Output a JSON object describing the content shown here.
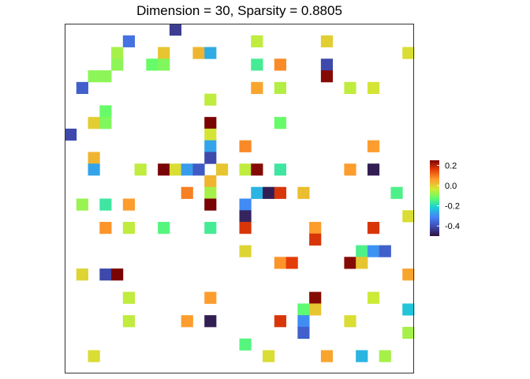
{
  "chart_data": {
    "type": "heatmap",
    "title": "Dimension = 30, Sparsity = 0.8805",
    "grid": false,
    "legend_placement": "right",
    "n_rows": 30,
    "n_cols": 30,
    "colorscale": {
      "name": "turbo",
      "vmin": -0.5,
      "vmax": 0.25
    },
    "colorbar": {
      "ticks": [
        0.2,
        0.0,
        -0.2,
        -0.4
      ],
      "tick_labels": [
        "0.2",
        "0.0",
        "-0.2",
        "-0.4"
      ]
    },
    "cells": [
      {
        "row": 0,
        "col": 9,
        "value": -0.43
      },
      {
        "row": 1,
        "col": 5,
        "value": -0.34
      },
      {
        "row": 1,
        "col": 16,
        "value": -0.05
      },
      {
        "row": 1,
        "col": 22,
        "value": 0.0
      },
      {
        "row": 2,
        "col": 4,
        "value": -0.07
      },
      {
        "row": 2,
        "col": 8,
        "value": 0.01
      },
      {
        "row": 2,
        "col": 11,
        "value": 0.03
      },
      {
        "row": 2,
        "col": 12,
        "value": -0.26
      },
      {
        "row": 2,
        "col": 29,
        "value": -0.02
      },
      {
        "row": 3,
        "col": 4,
        "value": -0.09
      },
      {
        "row": 3,
        "col": 7,
        "value": -0.12
      },
      {
        "row": 3,
        "col": 8,
        "value": -0.1
      },
      {
        "row": 3,
        "col": 16,
        "value": -0.16
      },
      {
        "row": 3,
        "col": 18,
        "value": 0.08
      },
      {
        "row": 3,
        "col": 22,
        "value": -0.41
      },
      {
        "row": 4,
        "col": 2,
        "value": -0.09
      },
      {
        "row": 4,
        "col": 3,
        "value": -0.09
      },
      {
        "row": 4,
        "col": 22,
        "value": 0.24
      },
      {
        "row": 5,
        "col": 1,
        "value": -0.37
      },
      {
        "row": 5,
        "col": 16,
        "value": 0.05
      },
      {
        "row": 5,
        "col": 18,
        "value": -0.06
      },
      {
        "row": 5,
        "col": 24,
        "value": -0.05
      },
      {
        "row": 5,
        "col": 26,
        "value": -0.03
      },
      {
        "row": 6,
        "col": 12,
        "value": -0.05
      },
      {
        "row": 7,
        "col": 3,
        "value": -0.12
      },
      {
        "row": 8,
        "col": 2,
        "value": 0.0
      },
      {
        "row": 8,
        "col": 3,
        "value": -0.1
      },
      {
        "row": 8,
        "col": 12,
        "value": 0.27
      },
      {
        "row": 8,
        "col": 18,
        "value": -0.12
      },
      {
        "row": 9,
        "col": 0,
        "value": -0.41
      },
      {
        "row": 9,
        "col": 12,
        "value": -0.03
      },
      {
        "row": 10,
        "col": 12,
        "value": -0.27
      },
      {
        "row": 10,
        "col": 15,
        "value": 0.08
      },
      {
        "row": 10,
        "col": 26,
        "value": 0.06
      },
      {
        "row": 11,
        "col": 2,
        "value": 0.03
      },
      {
        "row": 11,
        "col": 12,
        "value": -0.41
      },
      {
        "row": 12,
        "col": 2,
        "value": -0.27
      },
      {
        "row": 12,
        "col": 6,
        "value": -0.05
      },
      {
        "row": 12,
        "col": 8,
        "value": 0.27
      },
      {
        "row": 12,
        "col": 9,
        "value": -0.02
      },
      {
        "row": 12,
        "col": 10,
        "value": -0.28
      },
      {
        "row": 12,
        "col": 11,
        "value": -0.38
      },
      {
        "row": 12,
        "col": 13,
        "value": 0.01
      },
      {
        "row": 12,
        "col": 15,
        "value": -0.05
      },
      {
        "row": 12,
        "col": 16,
        "value": 0.24
      },
      {
        "row": 12,
        "col": 18,
        "value": -0.17
      },
      {
        "row": 12,
        "col": 24,
        "value": 0.06
      },
      {
        "row": 12,
        "col": 26,
        "value": -0.48
      },
      {
        "row": 13,
        "col": 12,
        "value": 0.03
      },
      {
        "row": 14,
        "col": 10,
        "value": 0.09
      },
      {
        "row": 14,
        "col": 12,
        "value": -0.07
      },
      {
        "row": 14,
        "col": 16,
        "value": -0.25
      },
      {
        "row": 14,
        "col": 17,
        "value": -0.48
      },
      {
        "row": 14,
        "col": 18,
        "value": 0.17
      },
      {
        "row": 14,
        "col": 20,
        "value": 0.02
      },
      {
        "row": 14,
        "col": 28,
        "value": -0.15
      },
      {
        "row": 15,
        "col": 1,
        "value": -0.08
      },
      {
        "row": 15,
        "col": 3,
        "value": -0.17
      },
      {
        "row": 15,
        "col": 5,
        "value": 0.06
      },
      {
        "row": 15,
        "col": 12,
        "value": 0.25
      },
      {
        "row": 15,
        "col": 15,
        "value": -0.3
      },
      {
        "row": 16,
        "col": 15,
        "value": -0.47
      },
      {
        "row": 16,
        "col": 29,
        "value": -0.02
      },
      {
        "row": 17,
        "col": 3,
        "value": 0.07
      },
      {
        "row": 17,
        "col": 5,
        "value": -0.05
      },
      {
        "row": 17,
        "col": 8,
        "value": -0.14
      },
      {
        "row": 17,
        "col": 12,
        "value": -0.16
      },
      {
        "row": 17,
        "col": 15,
        "value": 0.17
      },
      {
        "row": 17,
        "col": 21,
        "value": 0.06
      },
      {
        "row": 17,
        "col": 26,
        "value": 0.17
      },
      {
        "row": 18,
        "col": 21,
        "value": 0.17
      },
      {
        "row": 19,
        "col": 15,
        "value": -0.01
      },
      {
        "row": 19,
        "col": 25,
        "value": -0.15
      },
      {
        "row": 19,
        "col": 26,
        "value": -0.29
      },
      {
        "row": 19,
        "col": 27,
        "value": -0.37
      },
      {
        "row": 20,
        "col": 18,
        "value": 0.07
      },
      {
        "row": 20,
        "col": 19,
        "value": 0.16
      },
      {
        "row": 20,
        "col": 24,
        "value": 0.24
      },
      {
        "row": 20,
        "col": 25,
        "value": 0.01
      },
      {
        "row": 21,
        "col": 1,
        "value": -0.01
      },
      {
        "row": 21,
        "col": 3,
        "value": -0.41
      },
      {
        "row": 21,
        "col": 4,
        "value": 0.27
      },
      {
        "row": 21,
        "col": 29,
        "value": 0.05
      },
      {
        "row": 23,
        "col": 5,
        "value": -0.05
      },
      {
        "row": 23,
        "col": 12,
        "value": 0.06
      },
      {
        "row": 23,
        "col": 21,
        "value": 0.24
      },
      {
        "row": 23,
        "col": 26,
        "value": -0.04
      },
      {
        "row": 24,
        "col": 20,
        "value": -0.13
      },
      {
        "row": 24,
        "col": 21,
        "value": 0.01
      },
      {
        "row": 24,
        "col": 29,
        "value": -0.23
      },
      {
        "row": 25,
        "col": 5,
        "value": -0.05
      },
      {
        "row": 25,
        "col": 10,
        "value": 0.06
      },
      {
        "row": 25,
        "col": 12,
        "value": -0.48
      },
      {
        "row": 25,
        "col": 18,
        "value": 0.17
      },
      {
        "row": 25,
        "col": 20,
        "value": -0.3
      },
      {
        "row": 25,
        "col": 24,
        "value": -0.02
      },
      {
        "row": 26,
        "col": 20,
        "value": -0.37
      },
      {
        "row": 26,
        "col": 29,
        "value": -0.07
      },
      {
        "row": 27,
        "col": 15,
        "value": -0.14
      },
      {
        "row": 28,
        "col": 2,
        "value": -0.02
      },
      {
        "row": 28,
        "col": 17,
        "value": -0.02
      },
      {
        "row": 28,
        "col": 22,
        "value": 0.05
      },
      {
        "row": 28,
        "col": 25,
        "value": -0.25
      },
      {
        "row": 28,
        "col": 27,
        "value": -0.07
      }
    ]
  }
}
